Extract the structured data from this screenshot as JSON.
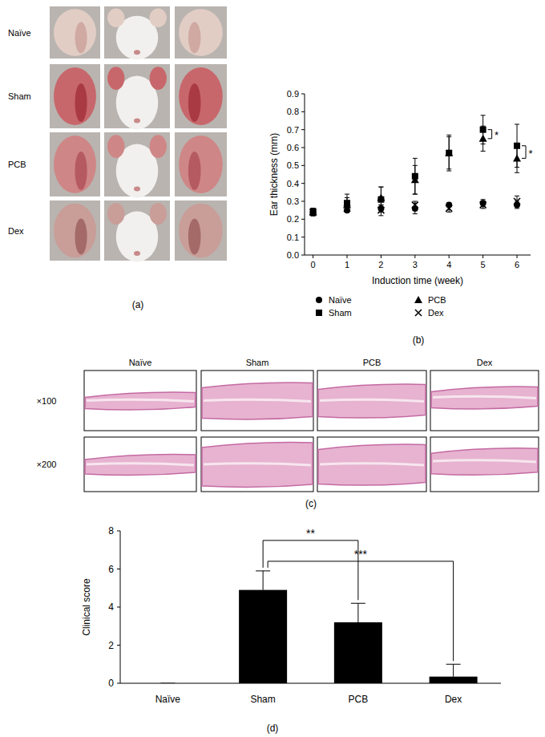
{
  "chart_data": [
    {
      "type": "scatter",
      "caption": "(b)",
      "x": [
        0,
        1,
        2,
        3,
        4,
        5,
        6
      ],
      "xlim": [
        -0.25,
        6.4
      ],
      "xticks": [
        0,
        1,
        2,
        3,
        4,
        5,
        6
      ],
      "ylim": [
        0,
        0.9
      ],
      "yticks": [
        {
          "value": 0,
          "label": "0.0"
        },
        0.1,
        0.2,
        0.3,
        0.4,
        0.5,
        0.6,
        0.7,
        0.8,
        0.9
      ],
      "x_label": "Induction time (week)",
      "y_label": "Ear thickness (mm)",
      "legend": "bottom",
      "series": [
        {
          "name": "Naïve",
          "color": "#000000",
          "marker": "circle",
          "values": [
            0.24,
            0.25,
            0.26,
            0.26,
            0.28,
            0.29,
            0.28
          ],
          "errors": [
            0.02,
            0.01,
            0.02,
            0.03,
            0.01,
            0.02,
            0.02
          ]
        },
        {
          "name": "Sham",
          "color": "#000000",
          "marker": "square",
          "values": [
            0.24,
            0.29,
            0.31,
            0.44,
            0.57,
            0.7,
            0.61
          ],
          "errors": [
            0.02,
            0.05,
            0.07,
            0.1,
            0.1,
            0.08,
            0.12
          ]
        },
        {
          "name": "PCB",
          "color": "#000000",
          "marker": "triangle",
          "values": [
            0.24,
            0.28,
            0.32,
            0.42,
            0.57,
            0.65,
            0.54
          ],
          "errors": [
            0.02,
            0.04,
            0.06,
            0.08,
            0.09,
            0.07,
            0.08
          ]
        },
        {
          "name": "Dex",
          "color": "#000000",
          "marker": "x",
          "values": [
            0.24,
            0.26,
            0.25,
            0.28,
            0.26,
            0.28,
            0.3
          ],
          "errors": [
            0.02,
            0.02,
            0.03,
            0.02,
            0.02,
            0.02,
            0.03
          ]
        }
      ],
      "annotations": [
        {
          "text": "*",
          "x": 5,
          "between": [
            "Sham",
            "PCB"
          ]
        },
        {
          "text": "*",
          "x": 6,
          "between": [
            "Sham",
            "PCB"
          ]
        }
      ]
    },
    {
      "type": "bar",
      "caption": "(d)",
      "categories": [
        "Naïve",
        "Sham",
        "PCB",
        "Dex"
      ],
      "values": [
        0,
        4.9,
        3.2,
        0.35
      ],
      "errors": [
        0,
        1.0,
        1.0,
        0.65
      ],
      "color": "#000000",
      "ylim": [
        0,
        8
      ],
      "yticks": [
        0,
        2,
        4,
        6,
        8
      ],
      "y_label": "Clinical score",
      "annotations": [
        {
          "text": "**",
          "between": [
            "Sham",
            "PCB"
          ]
        },
        {
          "text": "***",
          "between": [
            "Sham",
            "Dex"
          ]
        }
      ]
    }
  ],
  "photos_a": {
    "caption": "(a)",
    "rows": [
      "Naïve",
      "Sham",
      "PCB",
      "Dex"
    ]
  },
  "photos_c": {
    "caption": "(c)",
    "columns": [
      "Naïve",
      "Sham",
      "PCB",
      "Dex"
    ],
    "rows": [
      "×100",
      "×200"
    ]
  }
}
